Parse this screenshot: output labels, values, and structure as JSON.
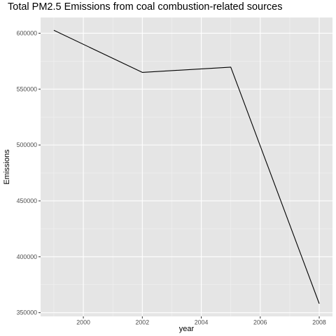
{
  "chart_data": {
    "type": "line",
    "title": "Total PM2.5 Emissions from coal combustion-related sources",
    "xlabel": "year",
    "ylabel": "Emissions",
    "x": [
      1999,
      2002,
      2005,
      2008
    ],
    "series": [
      {
        "values": [
          602624,
          564941,
          569655,
          358084
        ]
      }
    ],
    "xlim": [
      1998.55,
      2008.45
    ],
    "ylim": [
      346658,
      614051
    ],
    "x_ticks": [
      2000,
      2002,
      2004,
      2006,
      2008
    ],
    "x_tick_labels": [
      "2000",
      "2002",
      "2004",
      "2006",
      "2008"
    ],
    "y_ticks": [
      350000,
      400000,
      450000,
      500000,
      550000,
      600000
    ],
    "y_tick_labels": [
      "350000",
      "400000",
      "450000",
      "500000",
      "550000",
      "600000"
    ],
    "grid": true,
    "legend": "none",
    "colors": {
      "panel": "#e5e5e5",
      "grid_major": "#ffffff",
      "line": "#000000",
      "tick_text": "#4d4d4d"
    }
  }
}
